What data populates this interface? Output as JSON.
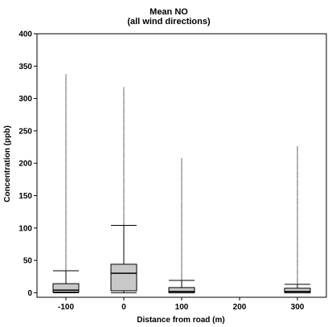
{
  "chart_data": {
    "type": "box",
    "title": "Mean NO",
    "subtitle": "(all wind directions)",
    "xlabel": "Distance from road (m)",
    "ylabel": "Concentration (ppb)",
    "x_ticks": [
      -100,
      0,
      100,
      200,
      300
    ],
    "y_ticks": [
      0,
      50,
      100,
      150,
      200,
      250,
      300,
      350,
      400
    ],
    "xlim": [
      -150,
      350
    ],
    "ylim": [
      -7,
      400
    ],
    "grid": false,
    "legend": "none",
    "box_color": "#c8c8c8",
    "series": [
      {
        "x": -100,
        "whisker_low": 0,
        "q1": 1,
        "median": 4,
        "q3": 14,
        "whisker_high": 34,
        "outlier_max": 338
      },
      {
        "x": 0,
        "whisker_low": 0,
        "q1": 3,
        "median": 30,
        "q3": 44,
        "whisker_high": 104,
        "outlier_max": 318
      },
      {
        "x": 100,
        "whisker_low": 0,
        "q1": 0,
        "median": 2,
        "q3": 8,
        "whisker_high": 19,
        "outlier_max": 208
      },
      {
        "x": 300,
        "whisker_low": 0,
        "q1": 0,
        "median": 2,
        "q3": 7,
        "whisker_high": 13,
        "outlier_max": 227
      }
    ]
  }
}
